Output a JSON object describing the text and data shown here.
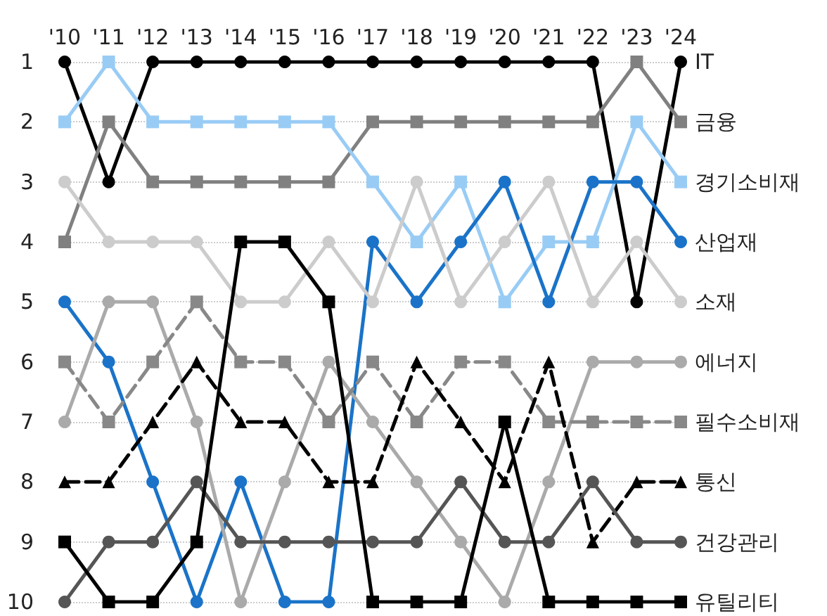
{
  "chart_data": {
    "type": "line",
    "categories": [
      "'10",
      "'11",
      "'12",
      "'13",
      "'14",
      "'15",
      "'16",
      "'17",
      "'18",
      "'19",
      "'20",
      "'21",
      "'22",
      "'23",
      "'24"
    ],
    "ylim": [
      10,
      1
    ],
    "yticks": [
      1,
      2,
      3,
      4,
      5,
      6,
      7,
      8,
      9,
      10
    ],
    "grid": "y",
    "legend": false,
    "series": [
      {
        "name": "IT",
        "color": "#000000",
        "marker": "circle",
        "line_style": "solid",
        "values": [
          1,
          3,
          1,
          1,
          1,
          1,
          1,
          1,
          1,
          1,
          1,
          1,
          1,
          5,
          1
        ]
      },
      {
        "name": "금융",
        "color": "#808080",
        "marker": "square",
        "line_style": "solid",
        "values": [
          4,
          2,
          3,
          3,
          3,
          3,
          3,
          2,
          2,
          2,
          2,
          2,
          2,
          1,
          2
        ]
      },
      {
        "name": "경기소비재",
        "color": "#99ccf5",
        "marker": "square",
        "line_style": "solid",
        "values": [
          2,
          1,
          2,
          2,
          2,
          2,
          2,
          3,
          4,
          3,
          5,
          4,
          4,
          2,
          3
        ]
      },
      {
        "name": "산업재",
        "color": "#1a73c8",
        "marker": "circle",
        "line_style": "solid",
        "values": [
          5,
          6,
          8,
          10,
          8,
          10,
          10,
          4,
          5,
          4,
          3,
          5,
          3,
          3,
          4
        ]
      },
      {
        "name": "소재",
        "color": "#cccccc",
        "marker": "circle",
        "line_style": "solid",
        "values": [
          3,
          4,
          4,
          4,
          5,
          5,
          4,
          5,
          3,
          5,
          4,
          3,
          5,
          4,
          5
        ]
      },
      {
        "name": "에너지",
        "color": "#aaaaaa",
        "marker": "circle",
        "line_style": "solid",
        "values": [
          7,
          5,
          5,
          7,
          10,
          8,
          6,
          7,
          8,
          9,
          10,
          8,
          6,
          6,
          6
        ]
      },
      {
        "name": "필수소비재",
        "color": "#888888",
        "marker": "square",
        "line_style": "dashed",
        "values": [
          6,
          7,
          6,
          5,
          6,
          6,
          7,
          6,
          7,
          6,
          6,
          7,
          7,
          7,
          7
        ]
      },
      {
        "name": "통신",
        "color": "#000000",
        "marker": "triangle",
        "line_style": "dashed",
        "values": [
          8,
          8,
          7,
          6,
          7,
          7,
          8,
          8,
          6,
          7,
          8,
          6,
          9,
          8,
          8
        ]
      },
      {
        "name": "건강관리",
        "color": "#555555",
        "marker": "circle",
        "line_style": "solid",
        "values": [
          10,
          9,
          9,
          8,
          9,
          9,
          9,
          9,
          9,
          8,
          9,
          9,
          8,
          9,
          9
        ]
      },
      {
        "name": "유틸리티",
        "color": "#000000",
        "marker": "square",
        "line_style": "solid",
        "values": [
          9,
          10,
          10,
          9,
          4,
          4,
          5,
          10,
          10,
          10,
          7,
          10,
          10,
          10,
          10
        ]
      }
    ]
  }
}
